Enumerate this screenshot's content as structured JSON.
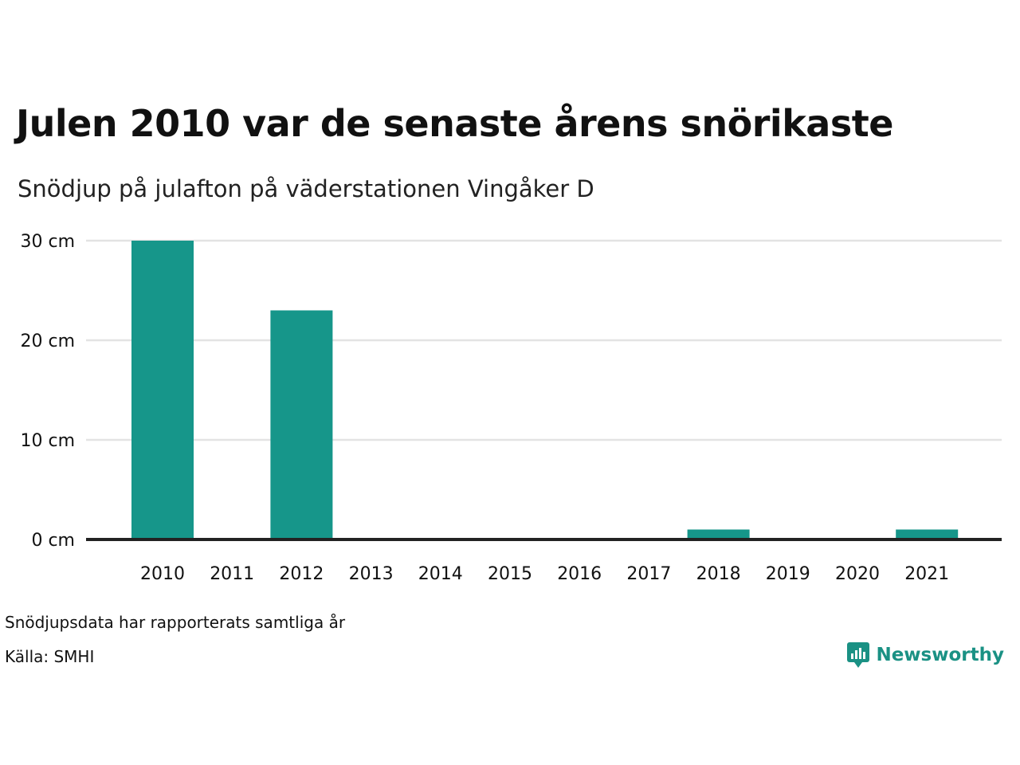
{
  "title": "Julen 2010 var de senaste årens snörikaste",
  "subtitle": "Snödjup på julafton på väderstationen Vingåker D",
  "colors": {
    "bar": "#16968a",
    "grid": "#e3e3e3",
    "axis": "#222222",
    "brand": "#1a9184"
  },
  "chart_data": {
    "type": "bar",
    "title": "Julen 2010 var de senaste årens snörikaste",
    "subtitle": "Snödjup på julafton på väderstationen Vingåker D",
    "categories": [
      "2010",
      "2011",
      "2012",
      "2013",
      "2014",
      "2015",
      "2016",
      "2017",
      "2018",
      "2019",
      "2020",
      "2021"
    ],
    "values": [
      30,
      0,
      23,
      0,
      0,
      0,
      0,
      0,
      1,
      0,
      0,
      1
    ],
    "y_ticks": [
      0,
      10,
      20,
      30
    ],
    "y_tick_labels": [
      "0 cm",
      "10 cm",
      "20 cm",
      "30 cm"
    ],
    "ylim": [
      0,
      30
    ],
    "xlabel": "",
    "ylabel": "",
    "grid": true
  },
  "footer": {
    "note": "Snödjupsdata har rapporterats samtliga år",
    "source": "Källa: SMHI"
  },
  "brand": {
    "name": "Newsworthy",
    "icon": "newsworthy-logo-icon"
  }
}
